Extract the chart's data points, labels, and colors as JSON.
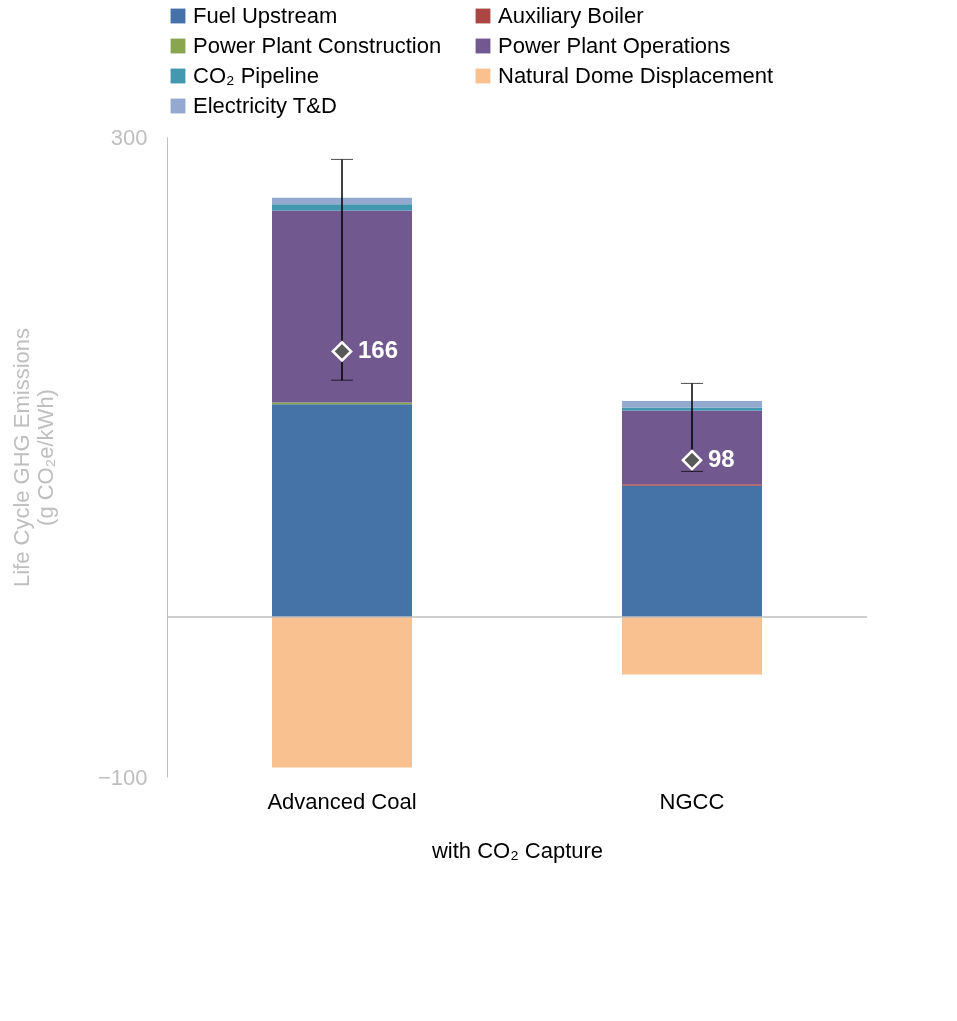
{
  "chart_data": {
    "type": "bar",
    "stacked": true,
    "categories": [
      "Advanced Coal",
      "NGCC"
    ],
    "xlabel": "with CO₂ Capture",
    "ylabel": "Life Cycle GHG Emissions\n(g CO₂e/kWh)",
    "ylim": [
      -100,
      300
    ],
    "yticks": [
      -100,
      300
    ],
    "grid": false,
    "legend": "top",
    "series": [
      {
        "name": "Fuel Upstream",
        "color": "#4572a7",
        "values": [
          133,
          82
        ]
      },
      {
        "name": "Auxiliary Boiler",
        "color": "#aa4643",
        "values": [
          0,
          1
        ]
      },
      {
        "name": "Power Plant Construction",
        "color": "#89a54e",
        "values": [
          1,
          0
        ]
      },
      {
        "name": "Power Plant Operations",
        "color": "#71588f",
        "values": [
          120,
          46
        ]
      },
      {
        "name": "CO₂ Pipeline",
        "color": "#4198af",
        "values": [
          4,
          2
        ]
      },
      {
        "name": "Natural Dome Displacement",
        "color": "#f9c090",
        "values": [
          -94,
          -36
        ]
      },
      {
        "name": "Electricity T&D",
        "color": "#93a9cf",
        "values": [
          4,
          4
        ]
      },
      {
        "type": "scatter",
        "marker": "diamond",
        "color": "#595959",
        "values": [
          166,
          98
        ],
        "value_labels": [
          "166",
          "98"
        ],
        "errors": [
          [
            148,
            286
          ],
          [
            91,
            146
          ]
        ]
      }
    ]
  }
}
